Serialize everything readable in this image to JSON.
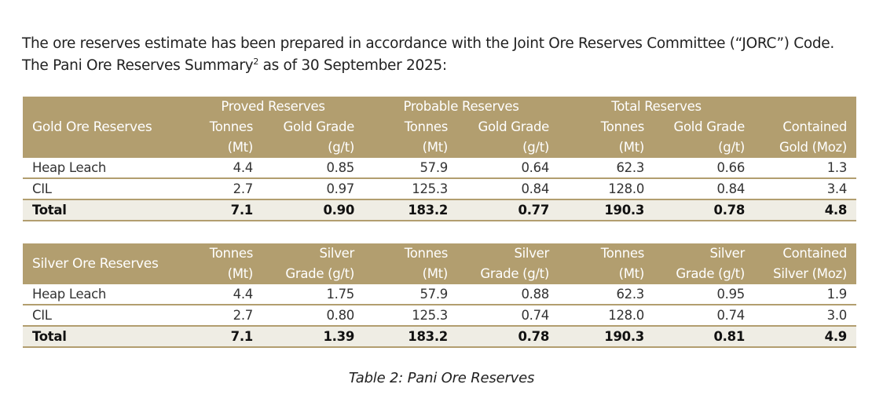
{
  "intro": {
    "line1": "The ore reserves estimate has been prepared in accordance with the Joint Ore Reserves Committee (“JORC”) Code.",
    "line2_before": "The Pani Ore Reserves Summary",
    "line2_footnote": "2",
    "line2_after": " as of 30 September 2025:"
  },
  "colors": {
    "header_bg": "#b29e6f",
    "header_text": "#ffffff",
    "rule": "#b29e6f",
    "total_row_bg": "#efede4"
  },
  "gold_table": {
    "title": "Gold Ore Reserves",
    "groups": [
      "Proved Reserves",
      "Probable Reserves",
      "Total Reserves"
    ],
    "columns": [
      {
        "line1": "Tonnes",
        "line2": "(Mt)"
      },
      {
        "line1": "Gold Grade",
        "line2": "(g/t)"
      },
      {
        "line1": "Tonnes",
        "line2": "(Mt)"
      },
      {
        "line1": "Gold Grade",
        "line2": "(g/t)"
      },
      {
        "line1": "Tonnes",
        "line2": "(Mt)"
      },
      {
        "line1": "Gold Grade",
        "line2": "(g/t)"
      },
      {
        "line1": "Contained",
        "line2": "Gold (Moz)"
      }
    ],
    "rows": [
      {
        "label": "Heap Leach",
        "values": [
          "4.4",
          "0.85",
          "57.9",
          "0.64",
          "62.3",
          "0.66",
          "1.3"
        ]
      },
      {
        "label": "CIL",
        "values": [
          "2.7",
          "0.97",
          "125.3",
          "0.84",
          "128.0",
          "0.84",
          "3.4"
        ]
      },
      {
        "label": "Total",
        "values": [
          "7.1",
          "0.90",
          "183.2",
          "0.77",
          "190.3",
          "0.78",
          "4.8"
        ]
      }
    ]
  },
  "silver_table": {
    "title": "Silver Ore Reserves",
    "columns": [
      {
        "line1": "Tonnes",
        "line2": "(Mt)"
      },
      {
        "line1": "Silver",
        "line2": "Grade (g/t)"
      },
      {
        "line1": "Tonnes",
        "line2": "(Mt)"
      },
      {
        "line1": "Silver",
        "line2": "Grade (g/t)"
      },
      {
        "line1": "Tonnes",
        "line2": "(Mt)"
      },
      {
        "line1": "Silver",
        "line2": "Grade (g/t)"
      },
      {
        "line1": "Contained",
        "line2": "Silver (Moz)"
      }
    ],
    "rows": [
      {
        "label": "Heap Leach",
        "values": [
          "4.4",
          "1.75",
          "57.9",
          "0.88",
          "62.3",
          "0.95",
          "1.9"
        ]
      },
      {
        "label": "CIL",
        "values": [
          "2.7",
          "0.80",
          "125.3",
          "0.74",
          "128.0",
          "0.74",
          "3.0"
        ]
      },
      {
        "label": "Total",
        "values": [
          "7.1",
          "1.39",
          "183.2",
          "0.78",
          "190.3",
          "0.81",
          "4.9"
        ]
      }
    ]
  },
  "caption": "Table 2: Pani Ore Reserves"
}
